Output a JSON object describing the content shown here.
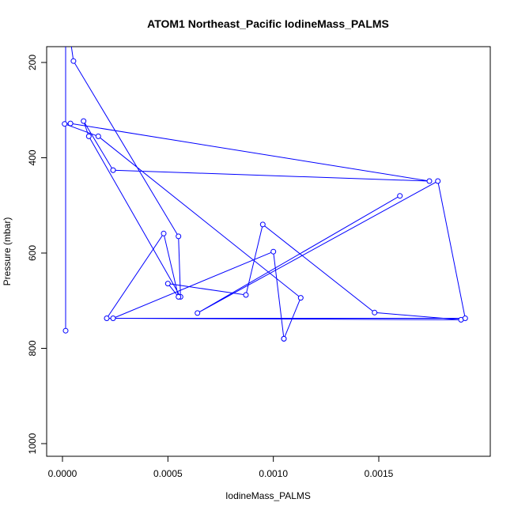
{
  "chart_data": {
    "type": "line",
    "title": "ATOM1 Northeast_Pacific IodineMass_PALMS",
    "xlabel": "IodineMass_PALMS",
    "ylabel": "Pressure (mbar)",
    "xlim": [
      0,
      0.00195
    ],
    "ylim": [
      1000,
      200
    ],
    "y_inverted": true,
    "x_ticks": [
      0.0,
      0.0005,
      0.001,
      0.0015
    ],
    "x_tick_labels": [
      "0.0000",
      "0.0005",
      "0.0010",
      "0.0015"
    ],
    "y_ticks": [
      200,
      400,
      600,
      800,
      1000
    ],
    "y_tick_labels": [
      "200",
      "400",
      "600",
      "800",
      "1000"
    ],
    "grid": false,
    "legend": "none",
    "line_color": "#0000ff",
    "marker": "open-circle",
    "series": [
      {
        "x": [
          1.5e-05,
          1.5e-05,
          4e-05,
          5.2e-05,
          0.00055,
          0.00056,
          0.000125,
          0.0001,
          0.00024,
          0.00024,
          0.00174,
          3.8e-05,
          1e-05,
          0.00017,
          0.00113,
          0.00105,
          0.00105,
          0.001,
          0.00024,
          0.00189,
          0.00148,
          0.00095,
          0.00087,
          0.0005,
          0.00055,
          0.00048,
          0.00021,
          0.00191,
          0.00178,
          0.00064,
          0.0016
        ],
        "y": [
          763,
          160,
          160,
          197,
          565,
          692,
          355,
          323,
          426,
          426,
          449,
          328,
          329,
          355,
          694,
          780,
          780,
          597,
          737,
          740,
          725,
          540,
          688,
          664,
          692,
          559,
          737,
          737,
          449,
          726,
          480
        ]
      }
    ]
  }
}
